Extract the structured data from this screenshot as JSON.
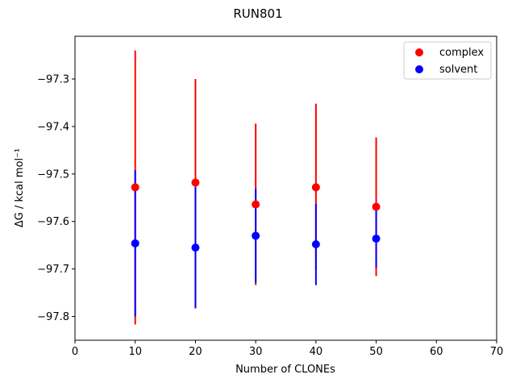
{
  "chart_data": {
    "type": "scatter",
    "title": "RUN801",
    "xlabel": "Number of CLONEs",
    "ylabel": "ΔG / kcal mol⁻¹",
    "xlim": [
      0,
      70
    ],
    "ylim": [
      -97.85,
      -97.21
    ],
    "xticks": [
      0,
      10,
      20,
      30,
      40,
      50,
      60,
      70
    ],
    "yticks": [
      -97.3,
      -97.4,
      -97.5,
      -97.6,
      -97.7,
      -97.8
    ],
    "grid": false,
    "legend_position": "top-right",
    "series": [
      {
        "name": "complex",
        "color": "#ff0000",
        "x": [
          10,
          20,
          30,
          40,
          50
        ],
        "y": [
          -97.528,
          -97.518,
          -97.564,
          -97.528,
          -97.569
        ],
        "err_low": [
          -97.817,
          -97.779,
          -97.734,
          -97.702,
          -97.715
        ],
        "err_high": [
          -97.24,
          -97.3,
          -97.394,
          -97.352,
          -97.423
        ]
      },
      {
        "name": "solvent",
        "color": "#0000ff",
        "x": [
          10,
          20,
          30,
          40,
          50
        ],
        "y": [
          -97.646,
          -97.655,
          -97.63,
          -97.648,
          -97.636
        ],
        "err_low": [
          -97.8,
          -97.783,
          -97.729,
          -97.734,
          -97.697
        ],
        "err_high": [
          -97.492,
          -97.527,
          -97.531,
          -97.563,
          -97.576
        ]
      }
    ]
  }
}
